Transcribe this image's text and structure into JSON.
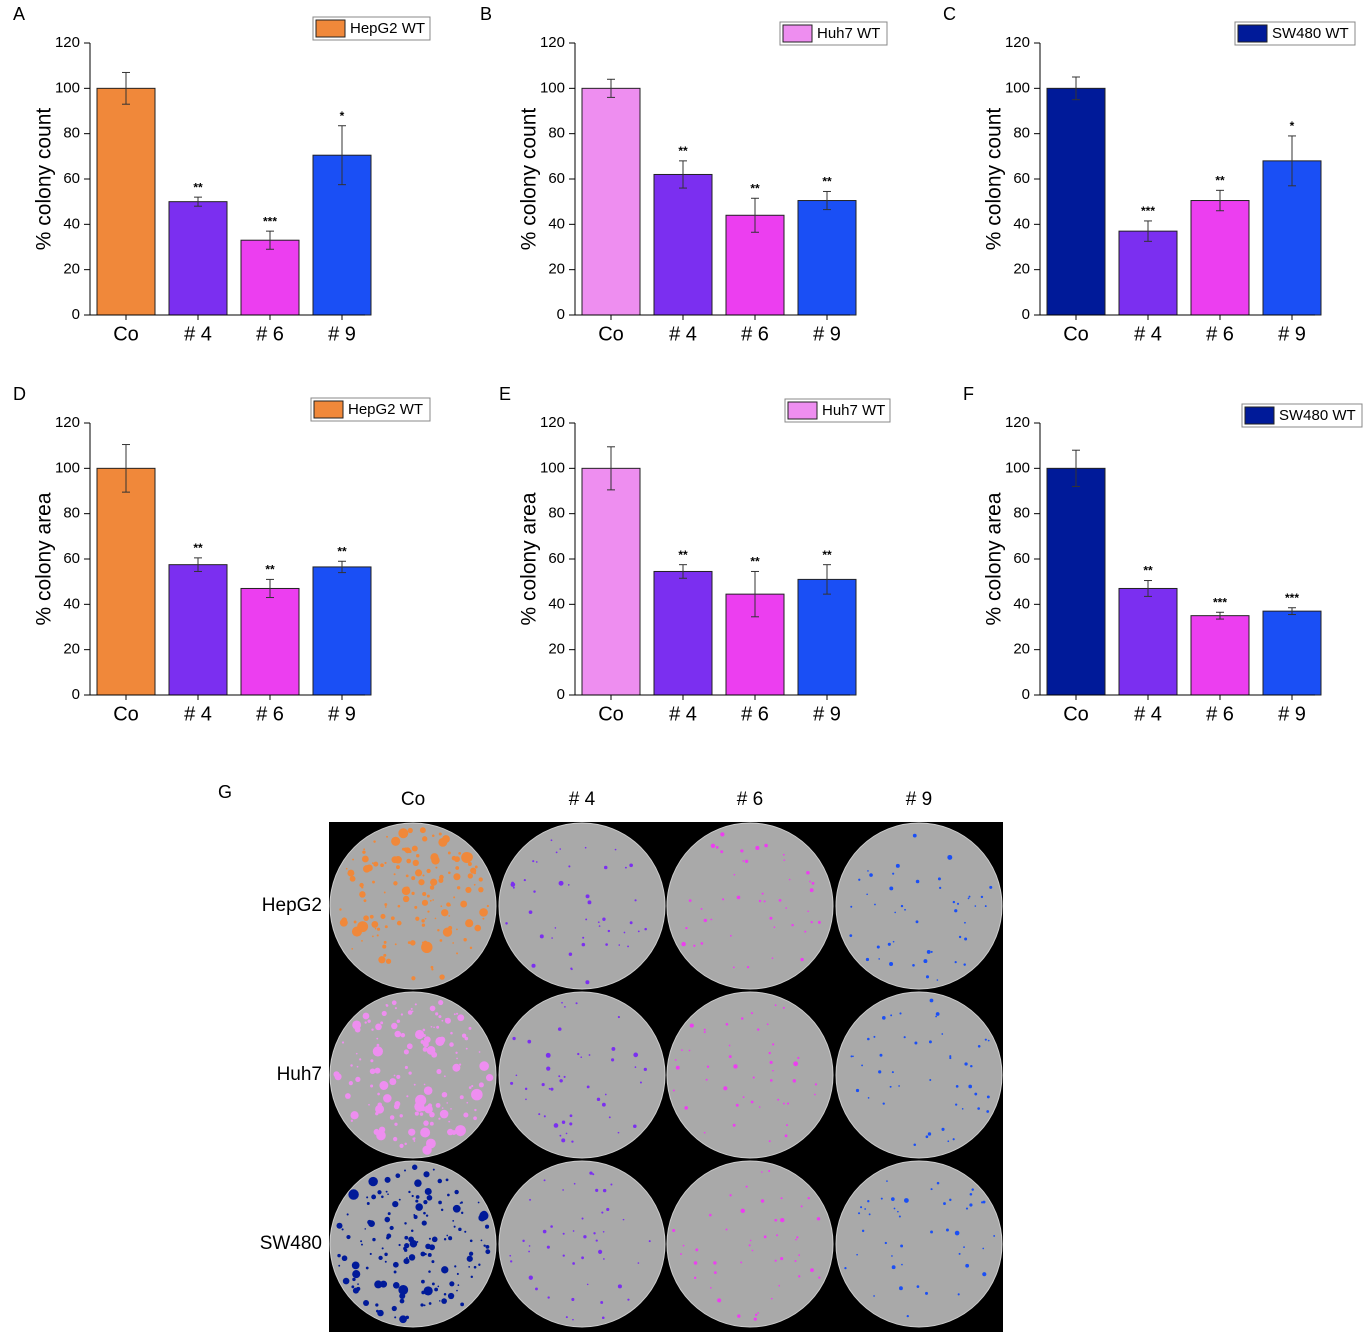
{
  "chart_data": [
    {
      "type": "bar",
      "label": "A",
      "ylabel": "% colony count",
      "categories": [
        "Co",
        "# 4",
        "# 6",
        "# 9"
      ],
      "series": [
        {
          "name": "HepG2 WT",
          "color": "#f0883a",
          "values": [
            100,
            50,
            33,
            70.5
          ],
          "errors": [
            7,
            2,
            4,
            13
          ]
        }
      ],
      "bar_colors": [
        "#f0883a",
        "#7b2ff0",
        "#ec3ef0",
        "#1a4ff5"
      ],
      "significance": [
        null,
        "**",
        "***",
        "*"
      ],
      "ylim": [
        0,
        120
      ],
      "yticks": [
        0,
        20,
        40,
        60,
        80,
        100,
        120
      ]
    },
    {
      "type": "bar",
      "label": "B",
      "ylabel": "% colony count",
      "categories": [
        "Co",
        "# 4",
        "# 6",
        "# 9"
      ],
      "series": [
        {
          "name": "Huh7 WT",
          "color": "#ee8ef0",
          "values": [
            100,
            62,
            44,
            50.5
          ],
          "errors": [
            4,
            6,
            7.5,
            4
          ]
        }
      ],
      "bar_colors": [
        "#ee8ef0",
        "#7b2ff0",
        "#ec3ef0",
        "#1a4ff5"
      ],
      "significance": [
        null,
        "**",
        "**",
        "**"
      ],
      "ylim": [
        0,
        120
      ],
      "yticks": [
        0,
        20,
        40,
        60,
        80,
        100,
        120
      ]
    },
    {
      "type": "bar",
      "label": "C",
      "ylabel": "% colony count",
      "categories": [
        "Co",
        "# 4",
        "# 6",
        "# 9"
      ],
      "series": [
        {
          "name": "SW480 WT",
          "color": "#001a99",
          "values": [
            100,
            37,
            50.5,
            68
          ],
          "errors": [
            5,
            4.5,
            4.5,
            11
          ]
        }
      ],
      "bar_colors": [
        "#001a99",
        "#7b2ff0",
        "#ec3ef0",
        "#1a4ff5"
      ],
      "significance": [
        null,
        "***",
        "**",
        "*"
      ],
      "ylim": [
        0,
        120
      ],
      "yticks": [
        0,
        20,
        40,
        60,
        80,
        100,
        120
      ]
    },
    {
      "type": "bar",
      "label": "D",
      "ylabel": "% colony area",
      "categories": [
        "Co",
        "# 4",
        "# 6",
        "# 9"
      ],
      "series": [
        {
          "name": "HepG2 WT",
          "color": "#f0883a",
          "values": [
            100,
            57.5,
            47,
            56.5
          ],
          "errors": [
            10.5,
            3,
            4,
            2.5
          ]
        }
      ],
      "bar_colors": [
        "#f0883a",
        "#7b2ff0",
        "#ec3ef0",
        "#1a4ff5"
      ],
      "significance": [
        null,
        "**",
        "**",
        "**"
      ],
      "ylim": [
        0,
        120
      ],
      "yticks": [
        0,
        20,
        40,
        60,
        80,
        100,
        120
      ]
    },
    {
      "type": "bar",
      "label": "E",
      "ylabel": "% colony area",
      "categories": [
        "Co",
        "# 4",
        "# 6",
        "# 9"
      ],
      "series": [
        {
          "name": "Huh7 WT",
          "color": "#ee8ef0",
          "values": [
            100,
            54.5,
            44.5,
            51
          ],
          "errors": [
            9.5,
            3,
            10,
            6.5
          ]
        }
      ],
      "bar_colors": [
        "#ee8ef0",
        "#7b2ff0",
        "#ec3ef0",
        "#1a4ff5"
      ],
      "significance": [
        null,
        "**",
        "**",
        "**"
      ],
      "ylim": [
        0,
        120
      ],
      "yticks": [
        0,
        20,
        40,
        60,
        80,
        100,
        120
      ]
    },
    {
      "type": "bar",
      "label": "F",
      "ylabel": "% colony area",
      "categories": [
        "Co",
        "# 4",
        "# 6",
        "# 9"
      ],
      "series": [
        {
          "name": "SW480 WT",
          "color": "#001a99",
          "values": [
            100,
            47,
            35,
            37
          ],
          "errors": [
            8,
            3.5,
            1.5,
            1.5
          ]
        }
      ],
      "bar_colors": [
        "#001a99",
        "#7b2ff0",
        "#ec3ef0",
        "#1a4ff5"
      ],
      "significance": [
        null,
        "**",
        "***",
        "***"
      ],
      "ylim": [
        0,
        120
      ],
      "yticks": [
        0,
        20,
        40,
        60,
        80,
        100,
        120
      ]
    }
  ],
  "plates": {
    "label": "G",
    "columns": [
      "Co",
      "# 4",
      "# 6",
      "# 9"
    ],
    "rows": [
      "HepG2",
      "Huh7",
      "SW480"
    ]
  }
}
